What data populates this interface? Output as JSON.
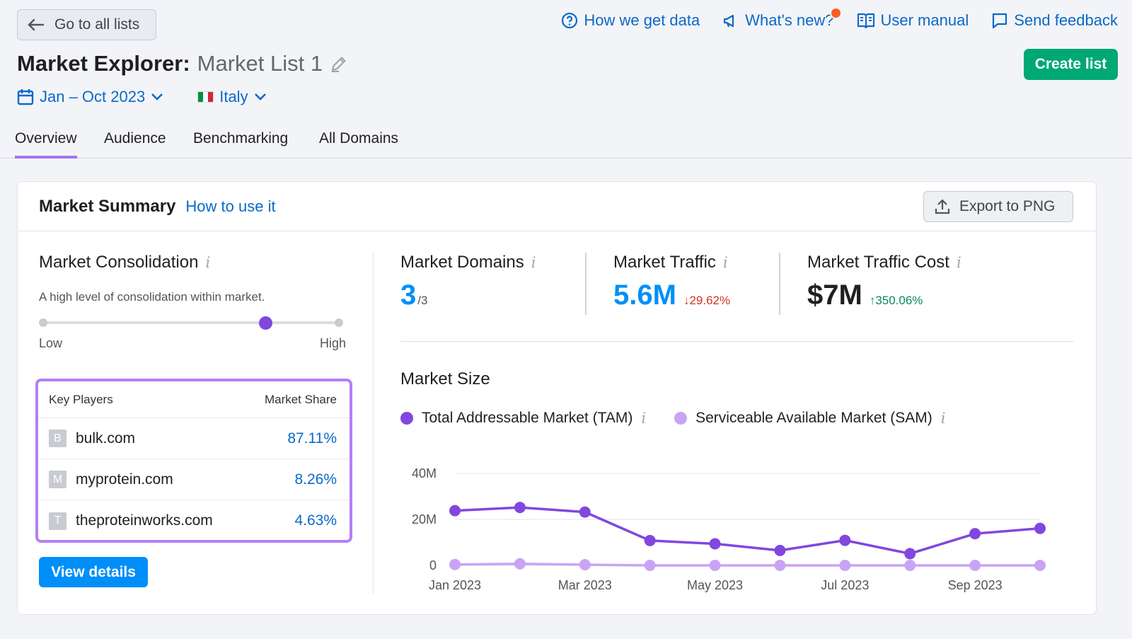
{
  "header": {
    "back_label": "Go to all lists",
    "links": [
      {
        "label": "How we get data",
        "icon": "question-circle-icon"
      },
      {
        "label": "What's new?",
        "icon": "megaphone-icon"
      },
      {
        "label": "User manual",
        "icon": "book-icon"
      },
      {
        "label": "Send feedback",
        "icon": "feedback-icon"
      }
    ],
    "title": "Market Explorer:",
    "subtitle": "Market List 1",
    "create_label": "Create list"
  },
  "filters": {
    "date_range": "Jan – Oct 2023",
    "country": "Italy"
  },
  "tabs": [
    "Overview",
    "Audience",
    "Benchmarking",
    "All Domains"
  ],
  "active_tab": "Overview",
  "card": {
    "title": "Market Summary",
    "how_link": "How to use it",
    "export_label": "Export to PNG"
  },
  "consolidation": {
    "label": "Market Consolidation",
    "description": "A high level of consolidation within market.",
    "low_label": "Low",
    "high_label": "High",
    "level": 0.75
  },
  "key_players": {
    "col_player": "Key Players",
    "col_share": "Market Share",
    "rows": [
      {
        "initial": "B",
        "domain": "bulk.com",
        "share": "87.11%"
      },
      {
        "initial": "M",
        "domain": "myprotein.com",
        "share": "8.26%"
      },
      {
        "initial": "T",
        "domain": "theproteinworks.com",
        "share": "4.63%"
      }
    ],
    "view_details": "View details"
  },
  "metrics": {
    "domains": {
      "label": "Market Domains",
      "value": "3",
      "of": "/3"
    },
    "traffic": {
      "label": "Market Traffic",
      "value": "5.6M",
      "delta": "29.62%",
      "direction": "down"
    },
    "cost": {
      "label": "Market Traffic Cost",
      "value": "$7M",
      "delta": "350.06%",
      "direction": "up"
    }
  },
  "market_size": {
    "title": "Market Size",
    "legend_tam": "Total Addressable Market (TAM)",
    "legend_sam": "Serviceable Available Market (SAM)"
  },
  "colors": {
    "tam": "#8147de",
    "sam": "#c9a4f5",
    "accent": "#0b69c7",
    "create": "#00a875"
  },
  "chart_data": {
    "type": "line",
    "x": [
      "Jan 2023",
      "Feb 2023",
      "Mar 2023",
      "Apr 2023",
      "May 2023",
      "Jun 2023",
      "Jul 2023",
      "Aug 2023",
      "Sep 2023",
      "Oct 2023"
    ],
    "xtick_labels": [
      "Jan 2023",
      "",
      "Mar 2023",
      "",
      "May 2023",
      "",
      "Jul 2023",
      "",
      "Sep 2023",
      ""
    ],
    "ytick_labels": [
      "0",
      "20M",
      "40M"
    ],
    "ylim": [
      0,
      40
    ],
    "series": [
      {
        "name": "Total Addressable Market (TAM)",
        "values": [
          23.8,
          25.2,
          23.2,
          10.8,
          9.4,
          6.5,
          10.9,
          5.1,
          13.8,
          16.1
        ]
      },
      {
        "name": "Serviceable Available Market (SAM)",
        "values": [
          0.4,
          0.7,
          0.3,
          0.0,
          0.0,
          0.0,
          0.0,
          0.0,
          0.0,
          0.0
        ]
      }
    ],
    "grid": true
  }
}
